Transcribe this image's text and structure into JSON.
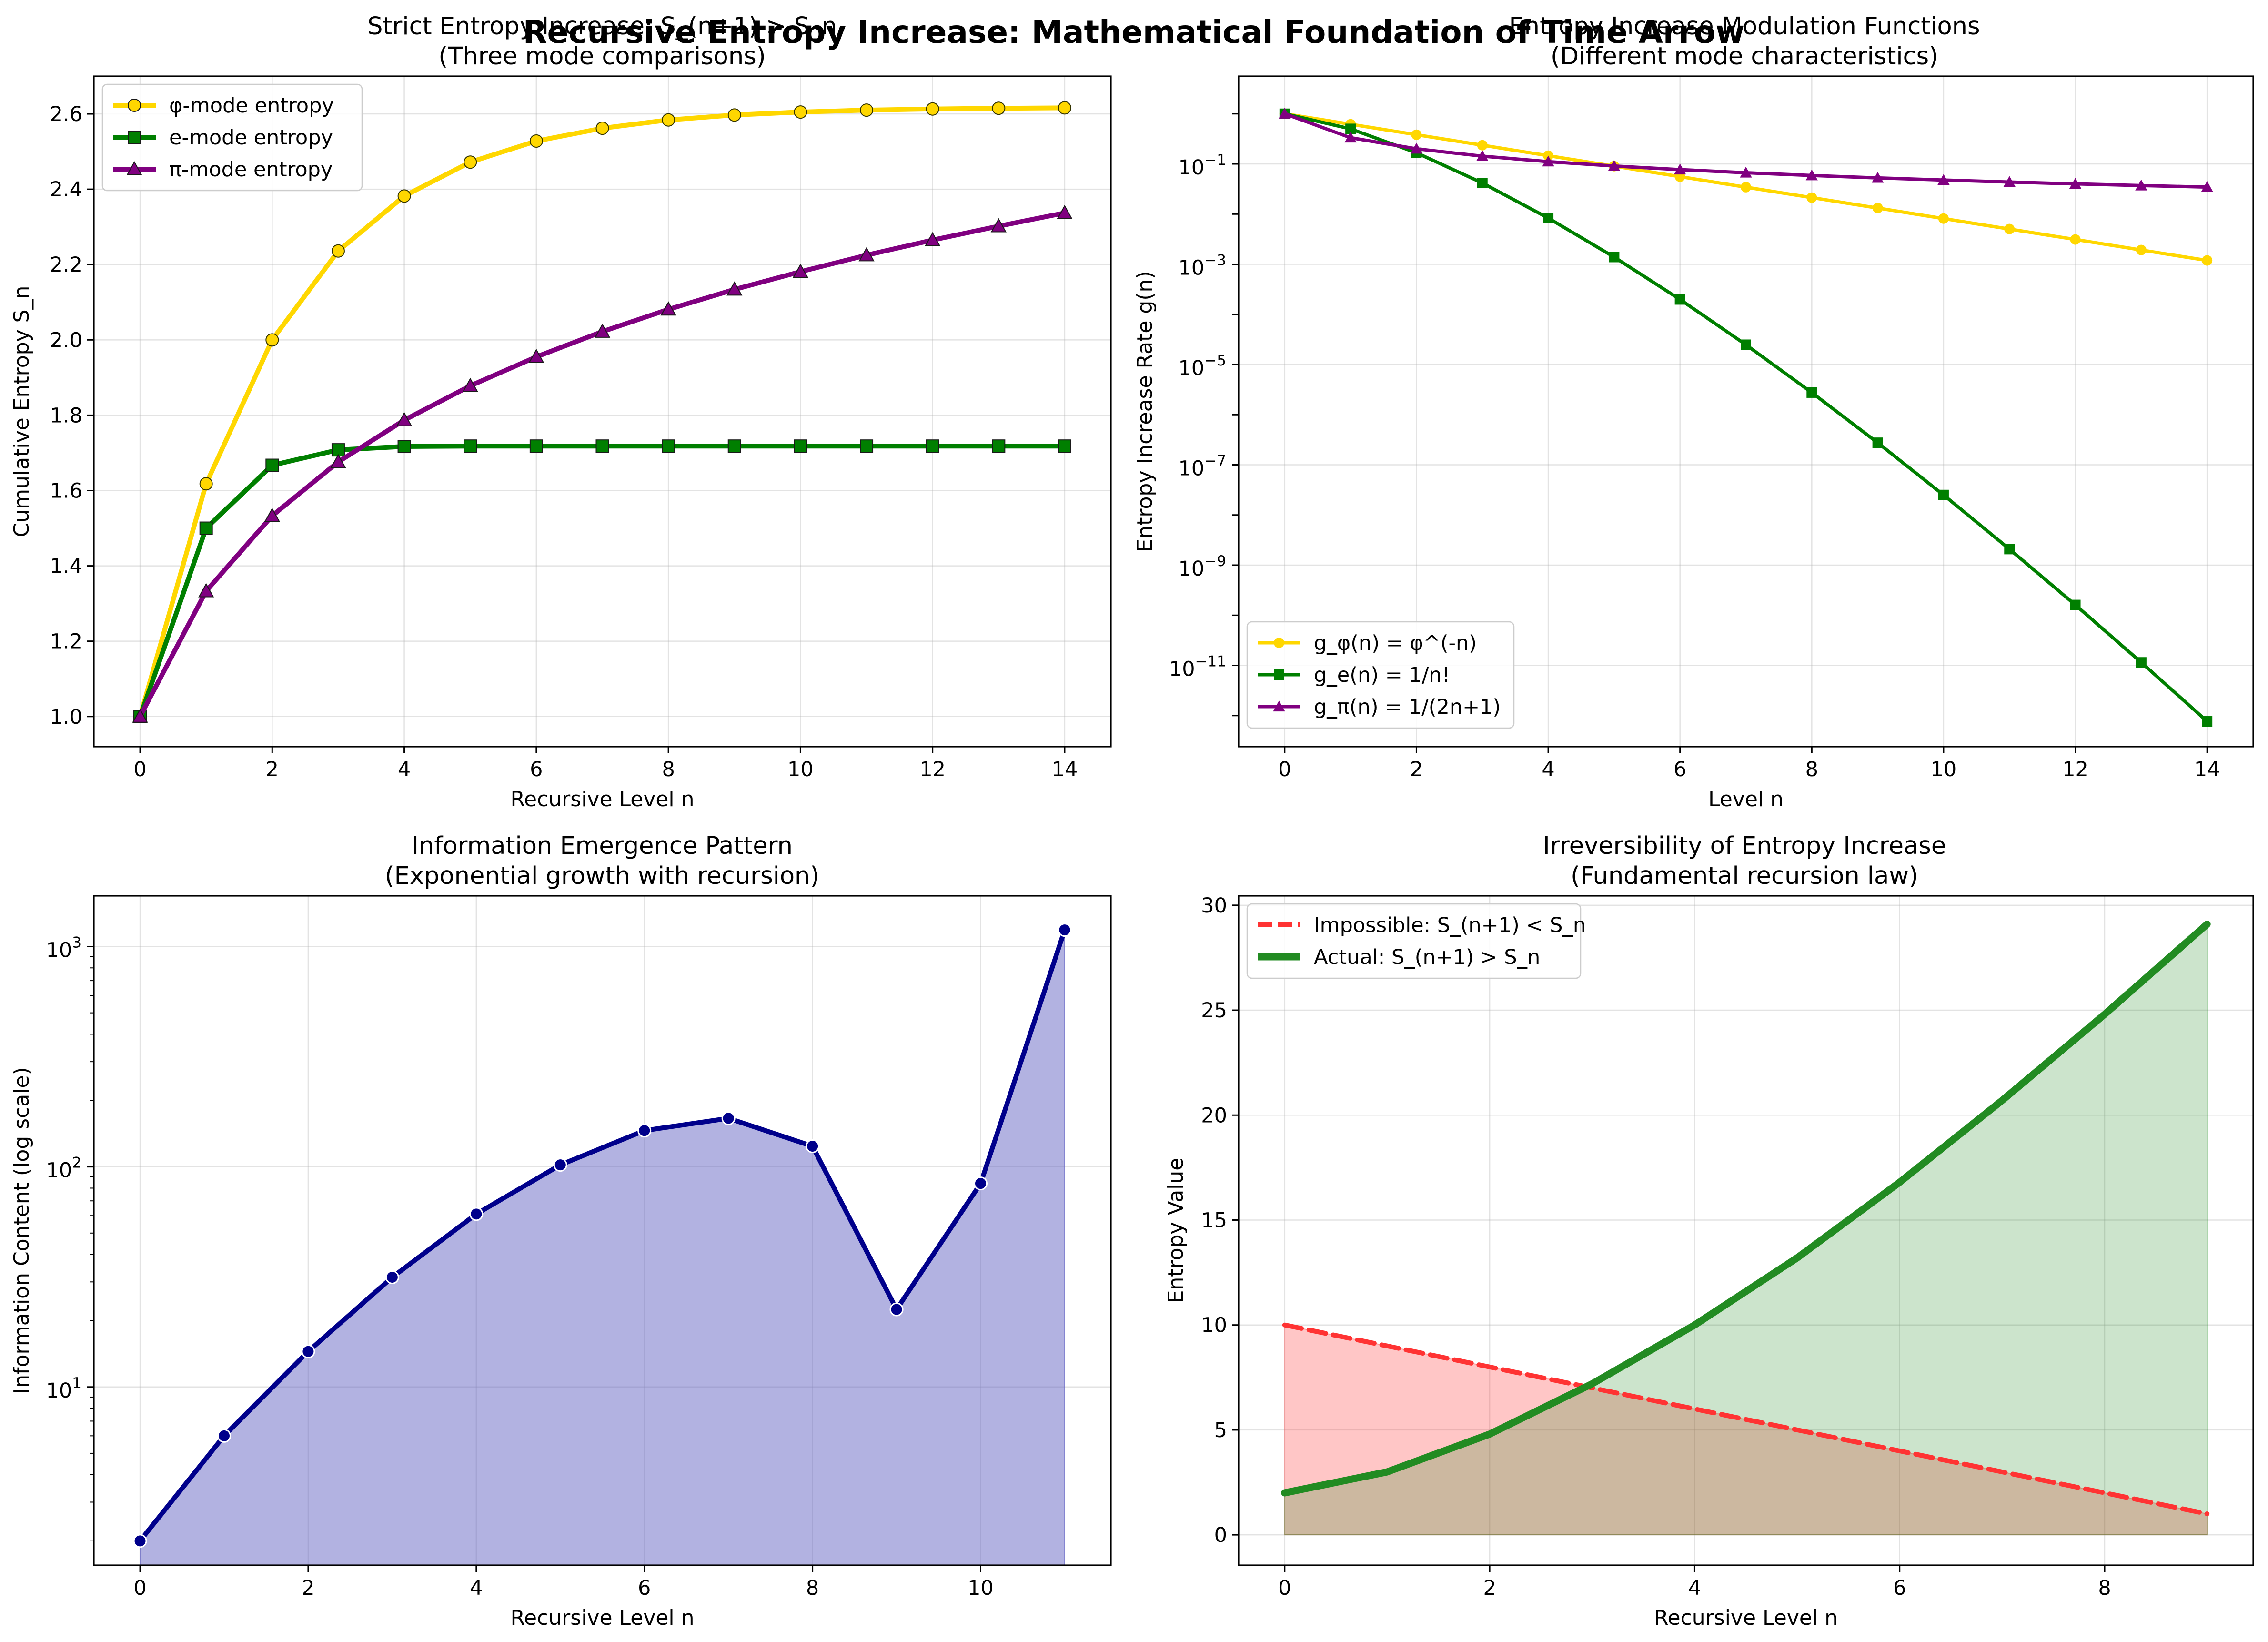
{
  "suptitle": "Recursive Entropy Increase: Mathematical Foundation of Time Arrow",
  "colors": {
    "phi": "#FFD700",
    "e": "#007F00",
    "pi": "#800080",
    "info": "#00008B",
    "info_fill": "#6666C4",
    "impossible": "#FF3333",
    "actual": "#228B22"
  },
  "chart_data": [
    {
      "type": "line",
      "title": "Strict Entropy Increase: S_(n+1) > S_n",
      "subtitle": "(Three mode comparisons)",
      "xlabel": "Recursive Level n",
      "ylabel": "Cumulative Entropy S_n",
      "xlim": [
        -0.7,
        14.7
      ],
      "ylim": [
        0.92,
        2.7
      ],
      "xticks": [
        "0",
        "2",
        "4",
        "6",
        "8",
        "10",
        "12",
        "14"
      ],
      "yticks": [
        "1.0",
        "1.2",
        "1.4",
        "1.6",
        "1.8",
        "2.0",
        "2.2",
        "2.4",
        "2.6"
      ],
      "grid": true,
      "legend_position": "top-left",
      "x": [
        0,
        1,
        2,
        3,
        4,
        5,
        6,
        7,
        8,
        9,
        10,
        11,
        12,
        13,
        14
      ],
      "series": [
        {
          "name": "φ-mode entropy",
          "marker": "circle",
          "values": [
            1.0,
            1.618,
            2.0,
            2.236,
            2.382,
            2.472,
            2.528,
            2.562,
            2.584,
            2.597,
            2.605,
            2.61,
            2.613,
            2.615,
            2.616
          ]
        },
        {
          "name": "e-mode entropy",
          "marker": "square",
          "values": [
            1.0,
            1.5,
            1.667,
            1.708,
            1.717,
            1.718,
            1.718,
            1.718,
            1.718,
            1.718,
            1.718,
            1.718,
            1.718,
            1.718,
            1.718
          ]
        },
        {
          "name": "π-mode entropy",
          "marker": "triangle",
          "values": [
            1.0,
            1.333,
            1.533,
            1.676,
            1.787,
            1.878,
            1.955,
            2.022,
            2.081,
            2.134,
            2.181,
            2.225,
            2.265,
            2.302,
            2.337
          ]
        }
      ]
    },
    {
      "type": "line",
      "title": "Entropy Increase Modulation Functions",
      "subtitle": "(Different mode characteristics)",
      "xlabel": "Level n",
      "ylabel": "Entropy Increase Rate g(n)",
      "yscale": "log",
      "xlim": [
        -0.7,
        14.7
      ],
      "ylim": [
        2.4e-13,
        5.6
      ],
      "xticks": [
        "0",
        "2",
        "4",
        "6",
        "8",
        "10",
        "12",
        "14"
      ],
      "yticks": [
        {
          "mant": "10",
          "exp": "−11"
        },
        {
          "mant": "10",
          "exp": "−9"
        },
        {
          "mant": "10",
          "exp": "−7"
        },
        {
          "mant": "10",
          "exp": "−5"
        },
        {
          "mant": "10",
          "exp": "−3"
        },
        {
          "mant": "10",
          "exp": "−1"
        }
      ],
      "grid": true,
      "legend_position": "bottom-left",
      "x": [
        0,
        1,
        2,
        3,
        4,
        5,
        6,
        7,
        8,
        9,
        10,
        11,
        12,
        13,
        14
      ],
      "series": [
        {
          "name": "g_φ(n) = φ^(-n)",
          "marker": "circle",
          "values": [
            1.0,
            0.618,
            0.382,
            0.236,
            0.146,
            0.0902,
            0.0557,
            0.0344,
            0.0213,
            0.0132,
            0.00813,
            0.00503,
            0.00311,
            0.00192,
            0.00119
          ]
        },
        {
          "name": "g_e(n) = 1/n!",
          "marker": "square",
          "values": [
            1.0,
            0.5,
            0.1667,
            0.04167,
            0.008333,
            0.001389,
            0.0001984,
            2.48e-05,
            2.756e-06,
            2.756e-07,
            2.505e-08,
            2.088e-09,
            1.606e-10,
            1.147e-11,
            7.647e-13
          ]
        },
        {
          "name": "g_π(n) = 1/(2n+1)",
          "marker": "triangle",
          "values": [
            1.0,
            0.3333,
            0.2,
            0.1429,
            0.1111,
            0.0909,
            0.0769,
            0.0667,
            0.0588,
            0.0526,
            0.0476,
            0.0435,
            0.04,
            0.037,
            0.0345
          ]
        }
      ]
    },
    {
      "type": "area",
      "title": "Information Emergence Pattern",
      "subtitle": "(Exponential growth with recursion)",
      "xlabel": "Recursive Level n",
      "ylabel": "Information Content (log scale)",
      "yscale": "log",
      "xlim": [
        -0.55,
        11.55
      ],
      "ylim": [
        1.55,
        1700
      ],
      "xticks": [
        "0",
        "2",
        "4",
        "6",
        "8",
        "10"
      ],
      "yticks": [
        {
          "mant": "10",
          "exp": "1"
        },
        {
          "mant": "10",
          "exp": "2"
        },
        {
          "mant": "10",
          "exp": "3"
        }
      ],
      "grid": true,
      "x": [
        0,
        1,
        2,
        3,
        4,
        5,
        6,
        7,
        8,
        9,
        10,
        11
      ],
      "series": [
        {
          "marker": "circle",
          "values": [
            2.0,
            6.0,
            14.5,
            31.5,
            61,
            102,
            146,
            166,
            124,
            22.5,
            84,
            1190
          ]
        }
      ]
    },
    {
      "type": "area",
      "title": "Irreversibility of Entropy Increase",
      "subtitle": "(Fundamental recursion law)",
      "xlabel": "Recursive Level n",
      "ylabel": "Entropy Value",
      "xlim": [
        -0.45,
        9.45
      ],
      "ylim": [
        -1.45,
        30.45
      ],
      "xticks": [
        "0",
        "2",
        "4",
        "6",
        "8"
      ],
      "yticks": [
        "0",
        "5",
        "10",
        "15",
        "20",
        "25",
        "30"
      ],
      "grid": true,
      "legend_position": "top-left",
      "x": [
        0,
        1,
        2,
        3,
        4,
        5,
        6,
        7,
        8,
        9
      ],
      "series": [
        {
          "name": "Impossible: S_(n+1) < S_n",
          "style": "dashed",
          "values": [
            10,
            9,
            8,
            7,
            6,
            5,
            4,
            3,
            2,
            1
          ]
        },
        {
          "name": "Actual: S_(n+1) > S_n",
          "style": "solid",
          "values": [
            2,
            3,
            4.8,
            7.2,
            10,
            13.2,
            16.8,
            20.7,
            24.8,
            29.1
          ]
        }
      ]
    }
  ]
}
